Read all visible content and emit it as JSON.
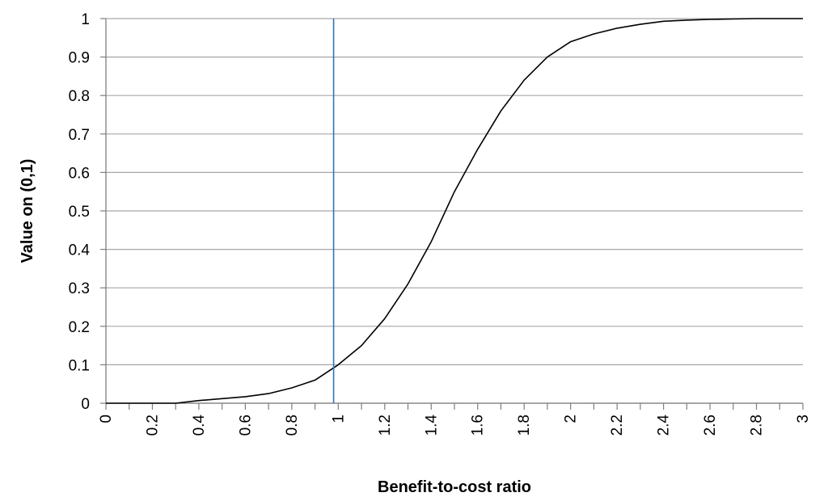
{
  "chart_data": {
    "type": "line",
    "title": "",
    "xlabel": "Benefit-to-cost ratio",
    "ylabel": "Value on (0,1)",
    "xlim": [
      0,
      3
    ],
    "ylim": [
      0,
      1
    ],
    "grid": "horizontal",
    "x_tick_step": 0.1,
    "x_tick_labels": [
      {
        "value": 0,
        "label": "0"
      },
      {
        "value": 0.2,
        "label": "0.2"
      },
      {
        "value": 0.4,
        "label": "0.4"
      },
      {
        "value": 0.6,
        "label": "0.6"
      },
      {
        "value": 0.8,
        "label": "0.8"
      },
      {
        "value": 1,
        "label": "1"
      },
      {
        "value": 1.2,
        "label": "1.2"
      },
      {
        "value": 1.4,
        "label": "1.4"
      },
      {
        "value": 1.6,
        "label": "1.6"
      },
      {
        "value": 1.8,
        "label": "1.8"
      },
      {
        "value": 2,
        "label": "2"
      },
      {
        "value": 2.2,
        "label": "2.2"
      },
      {
        "value": 2.4,
        "label": "2.4"
      },
      {
        "value": 2.6,
        "label": "2.6"
      },
      {
        "value": 2.8,
        "label": "2.8"
      },
      {
        "value": 3,
        "label": "3"
      }
    ],
    "y_tick_labels": [
      {
        "value": 0,
        "label": "0"
      },
      {
        "value": 0.1,
        "label": "0.1"
      },
      {
        "value": 0.2,
        "label": "0.2"
      },
      {
        "value": 0.3,
        "label": "0.3"
      },
      {
        "value": 0.4,
        "label": "0.4"
      },
      {
        "value": 0.5,
        "label": "0.5"
      },
      {
        "value": 0.6,
        "label": "0.6"
      },
      {
        "value": 0.7,
        "label": "0.7"
      },
      {
        "value": 0.8,
        "label": "0.8"
      },
      {
        "value": 0.9,
        "label": "0.9"
      },
      {
        "value": 1,
        "label": "1"
      }
    ],
    "series": [
      {
        "color": "#000000",
        "x": [
          0,
          0.1,
          0.2,
          0.3,
          0.4,
          0.5,
          0.6,
          0.7,
          0.8,
          0.9,
          1.0,
          1.1,
          1.2,
          1.3,
          1.4,
          1.5,
          1.6,
          1.7,
          1.8,
          1.9,
          2.0,
          2.1,
          2.2,
          2.3,
          2.4,
          2.5,
          2.6,
          2.7,
          2.8,
          2.9,
          3.0
        ],
        "y": [
          0,
          0,
          0,
          0,
          0.007,
          0.012,
          0.017,
          0.025,
          0.04,
          0.06,
          0.1,
          0.15,
          0.22,
          0.31,
          0.42,
          0.55,
          0.66,
          0.76,
          0.84,
          0.9,
          0.94,
          0.96,
          0.975,
          0.985,
          0.993,
          0.996,
          0.998,
          0.999,
          1.0,
          1.0,
          1.0
        ]
      }
    ],
    "vertical_line": {
      "x": 0.98,
      "color": "#2e75b6"
    },
    "colors": {
      "grid": "#a6a6a6",
      "axis": "#7f7f7f",
      "text": "#000000",
      "background": "#ffffff"
    }
  }
}
